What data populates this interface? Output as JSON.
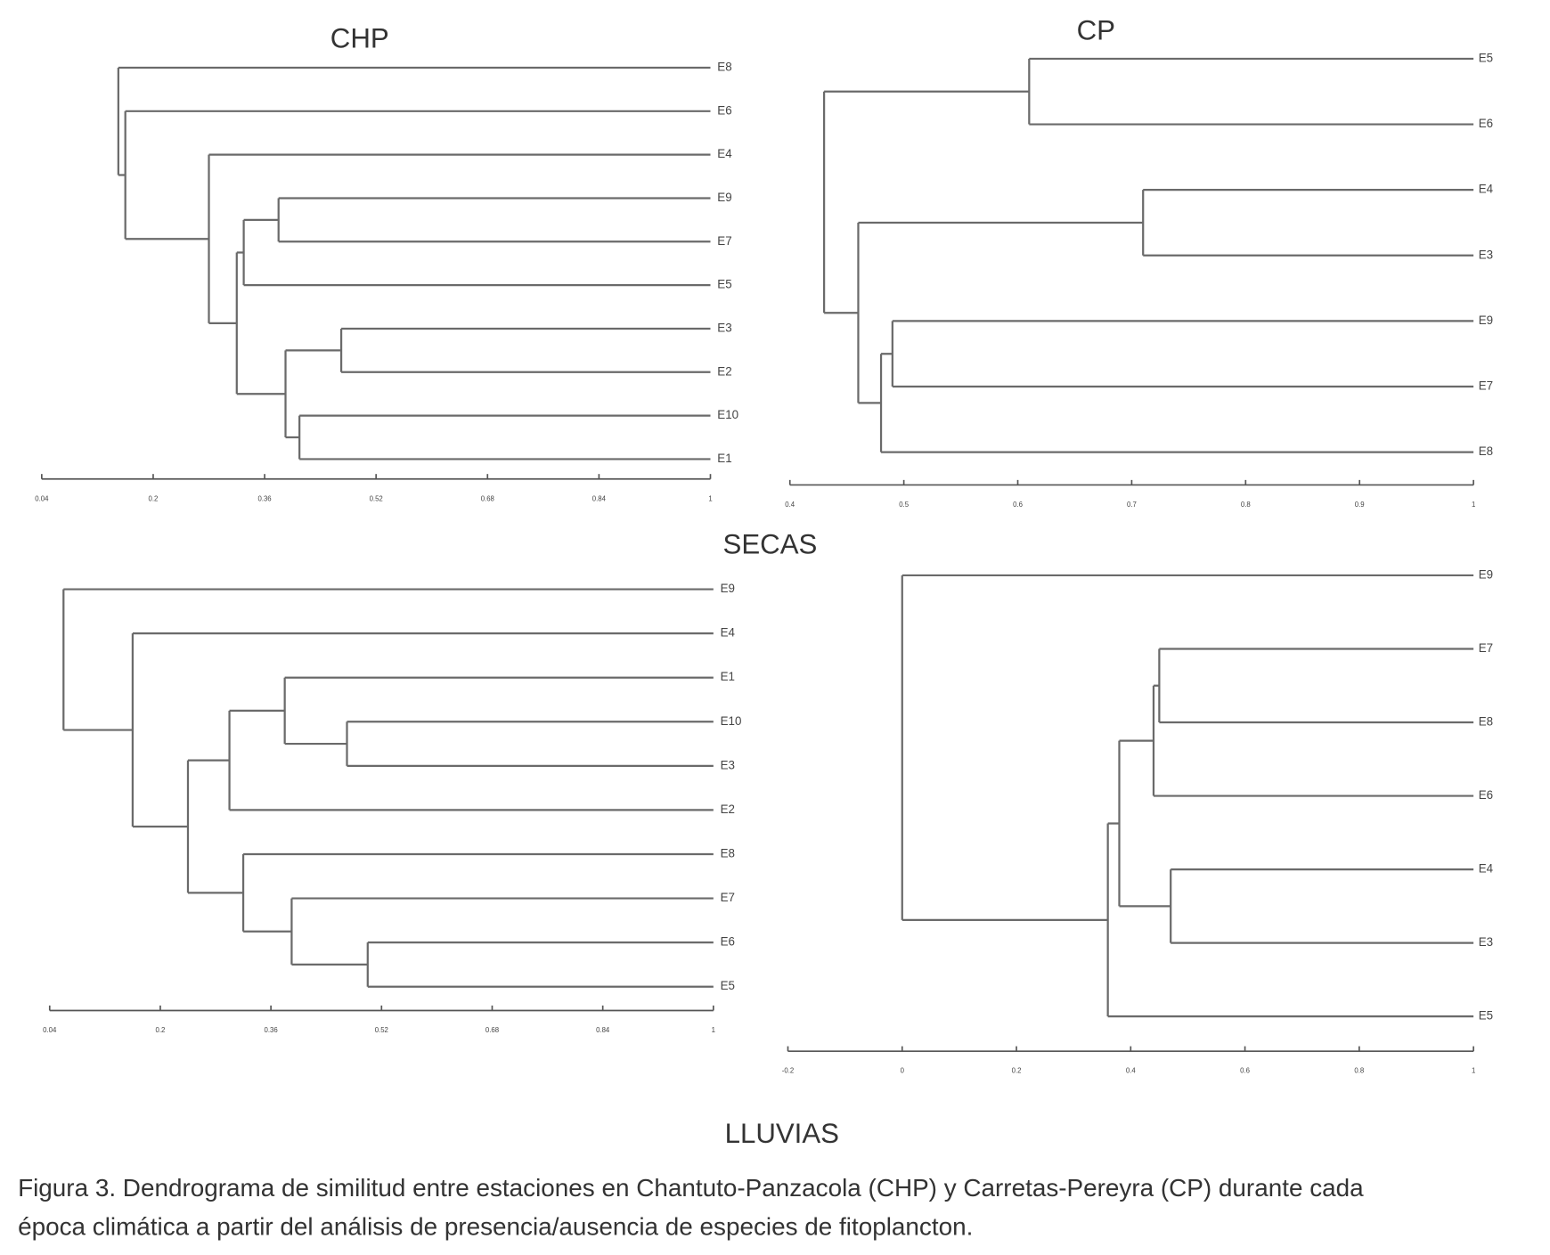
{
  "chart_data": [
    {
      "type": "dendrogram",
      "title": "CHP",
      "xlim": [
        0.04,
        1
      ],
      "xticks": [
        0.04,
        0.2,
        0.36,
        0.52,
        0.68,
        0.84,
        1
      ],
      "tree": {
        "value": 0.15,
        "children": [
          "E8",
          {
            "value": 0.16,
            "children": [
              "E6",
              {
                "value": 0.28,
                "children": [
                  "E4",
                  {
                    "value": 0.32,
                    "children": [
                      {
                        "value": 0.33,
                        "children": [
                          {
                            "value": 0.38,
                            "children": [
                              "E9",
                              "E7"
                            ]
                          },
                          "E5"
                        ]
                      },
                      {
                        "value": 0.39,
                        "children": [
                          {
                            "value": 0.47,
                            "children": [
                              "E3",
                              "E2"
                            ]
                          },
                          {
                            "value": 0.41,
                            "children": [
                              "E10",
                              "E1"
                            ]
                          }
                        ]
                      }
                    ]
                  }
                ]
              }
            ]
          }
        ]
      }
    },
    {
      "type": "dendrogram",
      "title": "CP",
      "xlim": [
        0.4,
        1
      ],
      "xticks": [
        0.4,
        0.5,
        0.6,
        0.7,
        0.8,
        0.9,
        1
      ],
      "tree": {
        "value": 0.43,
        "children": [
          {
            "value": 0.61,
            "children": [
              "E5",
              "E6"
            ]
          },
          {
            "value": 0.46,
            "children": [
              {
                "value": 0.71,
                "children": [
                  "E4",
                  "E3"
                ]
              },
              {
                "value": 0.48,
                "children": [
                  {
                    "value": 0.49,
                    "children": [
                      "E9",
                      "E7"
                    ]
                  },
                  "E8"
                ]
              }
            ]
          }
        ]
      }
    },
    {
      "type": "dendrogram",
      "xlim": [
        0.04,
        1
      ],
      "xticks": [
        0.04,
        0.2,
        0.36,
        0.52,
        0.68,
        0.84,
        1
      ],
      "tree": {
        "value": 0.06,
        "children": [
          "E9",
          {
            "value": 0.16,
            "children": [
              "E4",
              {
                "value": 0.24,
                "children": [
                  {
                    "value": 0.3,
                    "children": [
                      {
                        "value": 0.38,
                        "children": [
                          "E1",
                          {
                            "value": 0.47,
                            "children": [
                              "E10",
                              "E3"
                            ]
                          }
                        ]
                      },
                      "E2"
                    ]
                  },
                  {
                    "value": 0.32,
                    "children": [
                      "E8",
                      {
                        "value": 0.39,
                        "children": [
                          "E7",
                          {
                            "value": 0.5,
                            "children": [
                              "E6",
                              "E5"
                            ]
                          }
                        ]
                      }
                    ]
                  }
                ]
              }
            ]
          }
        ]
      }
    },
    {
      "type": "dendrogram",
      "xlim": [
        -0.2,
        1
      ],
      "xticks": [
        -0.2,
        0,
        0.2,
        0.4,
        0.6,
        0.8,
        1
      ],
      "tree": {
        "value": 0,
        "children": [
          "E9",
          {
            "value": 0.36,
            "children": [
              {
                "value": 0.38,
                "children": [
                  {
                    "value": 0.44,
                    "children": [
                      {
                        "value": 0.45,
                        "children": [
                          "E7",
                          "E8"
                        ]
                      },
                      "E6"
                    ]
                  },
                  {
                    "value": 0.47,
                    "children": [
                      "E4",
                      "E3"
                    ]
                  }
                ]
              },
              "E5"
            ]
          }
        ]
      }
    }
  ],
  "season_labels": [
    "SECAS",
    "LLUVIAS"
  ],
  "caption": [
    "Figura 3. Dendrograma de similitud entre estaciones en Chantuto-Panzacola (CHP) y Carretas-Pereyra (CP) durante cada",
    "época climática a partir del análisis de presencia/ausencia de especies de fitoplancton."
  ]
}
